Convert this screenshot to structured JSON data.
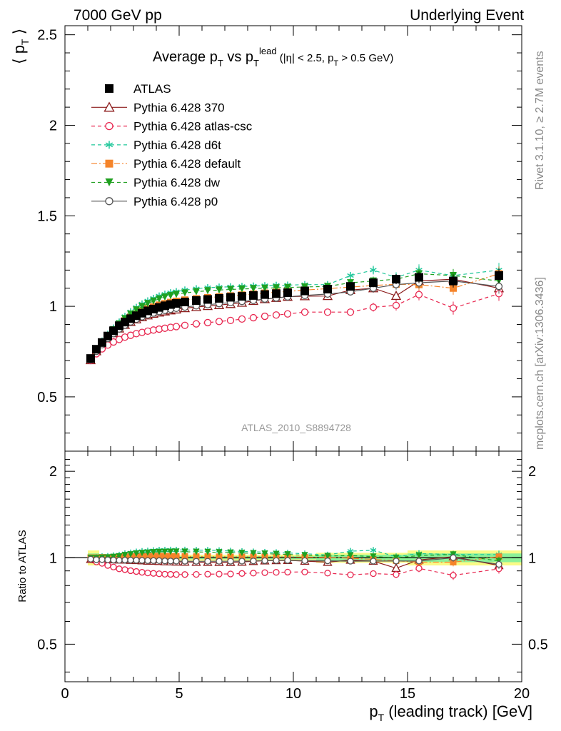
{
  "header": {
    "left": "7000 GeV pp",
    "right": "Underlying Event"
  },
  "side_labels": {
    "rivet": "Rivet 3.1.10, ≥ 2.7M events",
    "mcplots": "mcplots.cern.ch [arXiv:1306.3436]"
  },
  "analysis_id": "ATLAS_2010_S8894728",
  "chart_data": [
    {
      "type": "scatter",
      "title": "Average pT vs pT^lead (|η| < 2.5, pT > 0.5 GeV)",
      "ylabel": "⟨ pT ⟩",
      "xlabel": "",
      "xlim": [
        0,
        20
      ],
      "ylim": [
        0.2,
        2.55
      ],
      "yticks": [
        "0.5",
        "1",
        "1.5",
        "2",
        "2.5"
      ],
      "legend_position": "top-left",
      "x": [
        1.125,
        1.375,
        1.625,
        1.875,
        2.125,
        2.375,
        2.625,
        2.875,
        3.125,
        3.375,
        3.625,
        3.875,
        4.125,
        4.375,
        4.625,
        4.875,
        5.25,
        5.75,
        6.25,
        6.75,
        7.25,
        7.75,
        8.25,
        8.75,
        9.25,
        9.75,
        10.5,
        11.5,
        12.5,
        13.5,
        14.5,
        15.5,
        17.0,
        19.0
      ],
      "series": [
        {
          "name": "ATLAS",
          "color": "#000000",
          "marker": "square",
          "line": "none",
          "values": [
            0.712,
            0.763,
            0.8,
            0.836,
            0.865,
            0.893,
            0.913,
            0.932,
            0.948,
            0.962,
            0.975,
            0.985,
            0.994,
            1.003,
            1.01,
            1.016,
            1.024,
            1.032,
            1.038,
            1.044,
            1.05,
            1.055,
            1.06,
            1.065,
            1.07,
            1.075,
            1.085,
            1.095,
            1.11,
            1.13,
            1.15,
            1.16,
            1.14,
            1.17
          ]
        },
        {
          "name": "Pythia 6.428 370",
          "color": "#8b1a1a",
          "marker": "triangle-open",
          "line": "solid",
          "values": [
            0.703,
            0.752,
            0.79,
            0.826,
            0.852,
            0.878,
            0.898,
            0.914,
            0.928,
            0.94,
            0.95,
            0.959,
            0.966,
            0.972,
            0.978,
            0.983,
            0.99,
            0.996,
            1.002,
            1.007,
            1.013,
            1.02,
            1.03,
            1.04,
            1.047,
            1.053,
            1.056,
            1.057,
            1.09,
            1.1,
            1.058,
            1.14,
            1.15,
            1.1
          ]
        },
        {
          "name": "Pythia 6.428 atlas-csc",
          "color": "#e8264f",
          "marker": "circle-open",
          "line": "dashed",
          "values": [
            0.701,
            0.738,
            0.765,
            0.786,
            0.803,
            0.817,
            0.83,
            0.84,
            0.849,
            0.856,
            0.863,
            0.869,
            0.874,
            0.879,
            0.884,
            0.888,
            0.895,
            0.903,
            0.91,
            0.916,
            0.922,
            0.93,
            0.937,
            0.945,
            0.952,
            0.958,
            0.968,
            0.968,
            0.968,
            0.995,
            1.005,
            1.065,
            0.99,
            1.07
          ]
        },
        {
          "name": "Pythia 6.428 d6t",
          "color": "#1fc79a",
          "marker": "star",
          "line": "dashed",
          "values": [
            0.713,
            0.766,
            0.808,
            0.846,
            0.88,
            0.913,
            0.944,
            0.97,
            0.994,
            1.013,
            1.03,
            1.044,
            1.057,
            1.067,
            1.075,
            1.081,
            1.09,
            1.097,
            1.103,
            1.106,
            1.108,
            1.11,
            1.112,
            1.114,
            1.116,
            1.117,
            1.12,
            1.12,
            1.17,
            1.2,
            1.16,
            1.2,
            1.17,
            1.2
          ]
        },
        {
          "name": "Pythia 6.428 default",
          "color": "#f5842a",
          "marker": "square",
          "line": "dash-dot",
          "values": [
            0.713,
            0.764,
            0.803,
            0.838,
            0.868,
            0.896,
            0.92,
            0.94,
            0.958,
            0.973,
            0.986,
            0.997,
            1.007,
            1.015,
            1.022,
            1.028,
            1.035,
            1.042,
            1.048,
            1.053,
            1.058,
            1.063,
            1.068,
            1.073,
            1.078,
            1.082,
            1.09,
            1.098,
            1.106,
            1.115,
            1.122,
            1.12,
            1.1,
            1.18
          ]
        },
        {
          "name": "Pythia 6.428 dw",
          "color": "#20a020",
          "marker": "triangle-down",
          "line": "dashed",
          "values": [
            0.71,
            0.761,
            0.801,
            0.838,
            0.871,
            0.903,
            0.932,
            0.957,
            0.98,
            0.999,
            1.015,
            1.029,
            1.041,
            1.051,
            1.059,
            1.066,
            1.074,
            1.081,
            1.086,
            1.09,
            1.093,
            1.096,
            1.098,
            1.1,
            1.102,
            1.104,
            1.107,
            1.11,
            1.13,
            1.14,
            1.15,
            1.18,
            1.17,
            1.14
          ]
        },
        {
          "name": "Pythia 6.428 p0",
          "color": "#555555",
          "marker": "circle-open",
          "line": "solid",
          "values": [
            0.704,
            0.751,
            0.788,
            0.822,
            0.849,
            0.875,
            0.896,
            0.914,
            0.929,
            0.942,
            0.953,
            0.963,
            0.971,
            0.978,
            0.984,
            0.989,
            0.996,
            1.003,
            1.009,
            1.015,
            1.021,
            1.027,
            1.033,
            1.04,
            1.046,
            1.052,
            1.06,
            1.068,
            1.08,
            1.1,
            1.12,
            1.13,
            1.14,
            1.11
          ]
        }
      ]
    },
    {
      "type": "scatter",
      "title": "",
      "ylabel": "Ratio to ATLAS",
      "xlabel": "pT (leading track) [GeV]",
      "xlim": [
        0,
        20
      ],
      "ylim": [
        0.37,
        2.35
      ],
      "log_y": true,
      "yticks": [
        "0.5",
        "1",
        "2"
      ],
      "xticks": [
        "0",
        "5",
        "10",
        "15",
        "20"
      ],
      "reference_line": 1,
      "band_note": "yellow and green uncertainty bands around 1"
    }
  ]
}
